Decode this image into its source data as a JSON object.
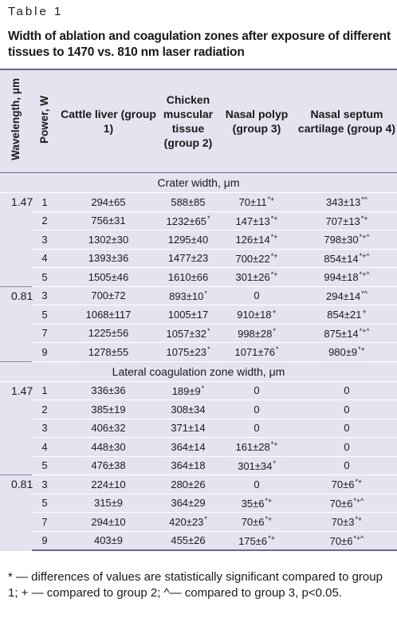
{
  "label": "Table 1",
  "title": "Width of ablation and coagulation zones after exposure of different tissues to 1470 vs. 810 nm laser radiation",
  "table": {
    "header": [
      "Wavelength, μm",
      "Power, W",
      "Cattle liver (group 1)",
      "Chicken muscular tissue (group 2)",
      "Nasal polyp (group 3)",
      "Nasal septum cartilage (group 4)"
    ],
    "sections": [
      {
        "title": "Crater width, μm",
        "groups": [
          {
            "wavelength": "1.47",
            "rows": [
              {
                "power": "1",
                "cells": [
                  "294±65",
                  "588±85",
                  {
                    "text": "70±11",
                    "sup": "*+"
                  },
                  {
                    "text": "343±13",
                    "sup": "*^"
                  }
                ]
              },
              {
                "power": "2",
                "cells": [
                  "756±31",
                  {
                    "text": "1232±65",
                    "sup": "*"
                  },
                  {
                    "text": "147±13",
                    "sup": "*+"
                  },
                  {
                    "text": "707±13",
                    "sup": "*+"
                  }
                ]
              },
              {
                "power": "3",
                "cells": [
                  "1302±30",
                  "1295±40",
                  {
                    "text": "126±14",
                    "sup": "*+"
                  },
                  {
                    "text": "798±30",
                    "sup": "*+^"
                  }
                ]
              },
              {
                "power": "4",
                "cells": [
                  "1393±36",
                  "1477±23",
                  {
                    "text": "700±22",
                    "sup": "*+"
                  },
                  {
                    "text": "854±14",
                    "sup": "*+^"
                  }
                ]
              },
              {
                "power": "5",
                "cells": [
                  "1505±46",
                  "1610±66",
                  {
                    "text": "301±26",
                    "sup": "*+"
                  },
                  {
                    "text": "994±18",
                    "sup": "*+^"
                  }
                ]
              }
            ]
          },
          {
            "wavelength": "0.81",
            "rows": [
              {
                "power": "3",
                "cells": [
                  "700±72",
                  {
                    "text": "893±10",
                    "sup": "*"
                  },
                  "0",
                  {
                    "text": "294±14",
                    "sup": "*^"
                  }
                ]
              },
              {
                "power": "5",
                "cells": [
                  "1068±117",
                  "1005±17",
                  {
                    "text": "910±18",
                    "sup": "+"
                  },
                  {
                    "text": "854±21",
                    "sup": "+"
                  }
                ]
              },
              {
                "power": "7",
                "cells": [
                  "1225±56",
                  {
                    "text": "1057±32",
                    "sup": "*"
                  },
                  {
                    "text": "998±28",
                    "sup": "*"
                  },
                  {
                    "text": "875±14",
                    "sup": "*+^"
                  }
                ]
              },
              {
                "power": "9",
                "cells": [
                  "1278±55",
                  {
                    "text": "1075±23",
                    "sup": "*"
                  },
                  {
                    "text": "1071±76",
                    "sup": "*"
                  },
                  {
                    "text": "980±9",
                    "sup": "*+"
                  }
                ]
              }
            ]
          }
        ]
      },
      {
        "title": "Lateral coagulation zone width, μm",
        "groups": [
          {
            "wavelength": "1.47",
            "rows": [
              {
                "power": "1",
                "cells": [
                  "336±36",
                  {
                    "text": "189±9",
                    "sup": "*"
                  },
                  "0",
                  "0"
                ]
              },
              {
                "power": "2",
                "cells": [
                  "385±19",
                  "308±34",
                  "0",
                  "0"
                ]
              },
              {
                "power": "3",
                "cells": [
                  "406±32",
                  "371±14",
                  "0",
                  "0"
                ]
              },
              {
                "power": "4",
                "cells": [
                  "448±30",
                  "364±14",
                  {
                    "text": "161±28",
                    "sup": "*+"
                  },
                  "0"
                ]
              },
              {
                "power": "5",
                "cells": [
                  "476±38",
                  "364±18",
                  {
                    "text": "301±34",
                    "sup": "*"
                  },
                  "0"
                ]
              }
            ]
          },
          {
            "wavelength": "0.81",
            "rows": [
              {
                "power": "3",
                "cells": [
                  "224±10",
                  "280±26",
                  "0",
                  {
                    "text": "70±6",
                    "sup": "*+"
                  }
                ]
              },
              {
                "power": "5",
                "cells": [
                  "315±9",
                  "364±29",
                  {
                    "text": "35±6",
                    "sup": "*+"
                  },
                  {
                    "text": "70±6",
                    "sup": "*+^"
                  }
                ]
              },
              {
                "power": "7",
                "cells": [
                  "294±10",
                  {
                    "text": "420±23",
                    "sup": "*"
                  },
                  {
                    "text": "70±6",
                    "sup": "*+"
                  },
                  {
                    "text": "70±3",
                    "sup": "*+"
                  }
                ]
              },
              {
                "power": "9",
                "cells": [
                  "403±9",
                  "455±26",
                  {
                    "text": "175±6",
                    "sup": "*+"
                  },
                  {
                    "text": "70±6",
                    "sup": "*+^"
                  }
                ]
              }
            ]
          }
        ]
      }
    ]
  },
  "footnote": "* — differences of values are statistically significant compared to group 1; + — compared to group 2; ^— compared to group 3, p<0.05."
}
